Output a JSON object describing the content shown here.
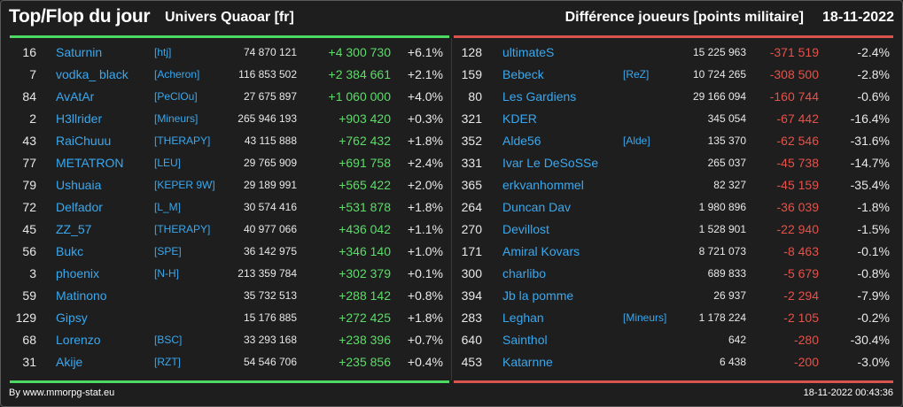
{
  "header": {
    "title": "Top/Flop du jour",
    "universe": "Univers Quaoar [fr]",
    "metric": "Différence joueurs [points militaire]",
    "date": "18-11-2022"
  },
  "colors": {
    "top_accent": "#4cd964",
    "flop_accent": "#d9534f",
    "link": "#3aa8ee"
  },
  "top": [
    {
      "rank": "16",
      "name": "Saturnin",
      "alliance": "[htj]",
      "points": "74 870 121",
      "diff": "+4 300 730",
      "pct": "+6.1%"
    },
    {
      "rank": "7",
      "name": "vodka_ black",
      "alliance": "[Acheron]",
      "points": "116 853 502",
      "diff": "+2 384 661",
      "pct": "+2.1%"
    },
    {
      "rank": "84",
      "name": "AvAtAr",
      "alliance": "[PeClOu]",
      "points": "27 675 897",
      "diff": "+1 060 000",
      "pct": "+4.0%"
    },
    {
      "rank": "2",
      "name": "H3llrider",
      "alliance": "[Mineurs]",
      "points": "265 946 193",
      "diff": "+903 420",
      "pct": "+0.3%"
    },
    {
      "rank": "43",
      "name": "RaiChuuu",
      "alliance": "[THERAPY]",
      "points": "43 115 888",
      "diff": "+762 432",
      "pct": "+1.8%"
    },
    {
      "rank": "77",
      "name": "METATRON",
      "alliance": "[LEU]",
      "points": "29 765 909",
      "diff": "+691 758",
      "pct": "+2.4%"
    },
    {
      "rank": "79",
      "name": "Ushuaia",
      "alliance": "[KEPER 9W]",
      "points": "29 189 991",
      "diff": "+565 422",
      "pct": "+2.0%"
    },
    {
      "rank": "72",
      "name": "Delfador",
      "alliance": "[L_M]",
      "points": "30 574 416",
      "diff": "+531 878",
      "pct": "+1.8%"
    },
    {
      "rank": "45",
      "name": "ZZ_57",
      "alliance": "[THERAPY]",
      "points": "40 977 066",
      "diff": "+436 042",
      "pct": "+1.1%"
    },
    {
      "rank": "56",
      "name": "Bukc",
      "alliance": "[SPE]",
      "points": "36 142 975",
      "diff": "+346 140",
      "pct": "+1.0%"
    },
    {
      "rank": "3",
      "name": "phoenix",
      "alliance": "[N-H]",
      "points": "213 359 784",
      "diff": "+302 379",
      "pct": "+0.1%"
    },
    {
      "rank": "59",
      "name": "Matinono",
      "alliance": "",
      "points": "35 732 513",
      "diff": "+288 142",
      "pct": "+0.8%"
    },
    {
      "rank": "129",
      "name": "Gipsy",
      "alliance": "",
      "points": "15 176 885",
      "diff": "+272 425",
      "pct": "+1.8%"
    },
    {
      "rank": "68",
      "name": "Lorenzo",
      "alliance": "[BSC]",
      "points": "33 293 168",
      "diff": "+238 396",
      "pct": "+0.7%"
    },
    {
      "rank": "31",
      "name": "Akije",
      "alliance": "[RZT]",
      "points": "54 546 706",
      "diff": "+235 856",
      "pct": "+0.4%"
    }
  ],
  "flop": [
    {
      "rank": "128",
      "name": "ultimateS",
      "alliance": "",
      "points": "15 225 963",
      "diff": "-371 519",
      "pct": "-2.4%"
    },
    {
      "rank": "159",
      "name": "Bebeck",
      "alliance": "[ReZ]",
      "points": "10 724 265",
      "diff": "-308 500",
      "pct": "-2.8%"
    },
    {
      "rank": "80",
      "name": "Les Gardiens",
      "alliance": "",
      "points": "29 166 094",
      "diff": "-160 744",
      "pct": "-0.6%"
    },
    {
      "rank": "321",
      "name": "KDER",
      "alliance": "",
      "points": "345 054",
      "diff": "-67 442",
      "pct": "-16.4%"
    },
    {
      "rank": "352",
      "name": "Alde56",
      "alliance": "[Alde]",
      "points": "135 370",
      "diff": "-62 546",
      "pct": "-31.6%"
    },
    {
      "rank": "331",
      "name": "Ivar Le DeSoSSe",
      "alliance": "",
      "points": "265 037",
      "diff": "-45 738",
      "pct": "-14.7%"
    },
    {
      "rank": "365",
      "name": "erkvanhommel",
      "alliance": "",
      "points": "82 327",
      "diff": "-45 159",
      "pct": "-35.4%"
    },
    {
      "rank": "264",
      "name": "Duncan Dav",
      "alliance": "",
      "points": "1 980 896",
      "diff": "-36 039",
      "pct": "-1.8%"
    },
    {
      "rank": "270",
      "name": "Devillost",
      "alliance": "",
      "points": "1 528 901",
      "diff": "-22 940",
      "pct": "-1.5%"
    },
    {
      "rank": "171",
      "name": "Amiral Kovars",
      "alliance": "",
      "points": "8 721 073",
      "diff": "-8 463",
      "pct": "-0.1%"
    },
    {
      "rank": "300",
      "name": "charlibo",
      "alliance": "",
      "points": "689 833",
      "diff": "-5 679",
      "pct": "-0.8%"
    },
    {
      "rank": "394",
      "name": "Jb la pomme",
      "alliance": "",
      "points": "26 937",
      "diff": "-2 294",
      "pct": "-7.9%"
    },
    {
      "rank": "283",
      "name": "Leghan",
      "alliance": "[Mineurs]",
      "points": "1 178 224",
      "diff": "-2 105",
      "pct": "-0.2%"
    },
    {
      "rank": "640",
      "name": "Sainthol",
      "alliance": "",
      "points": "642",
      "diff": "-280",
      "pct": "-30.4%"
    },
    {
      "rank": "453",
      "name": "Katarnne",
      "alliance": "",
      "points": "6 438",
      "diff": "-200",
      "pct": "-3.0%"
    }
  ],
  "footer": {
    "source": "By www.mmorpg-stat.eu",
    "timestamp": "18-11-2022 00:43:36"
  }
}
